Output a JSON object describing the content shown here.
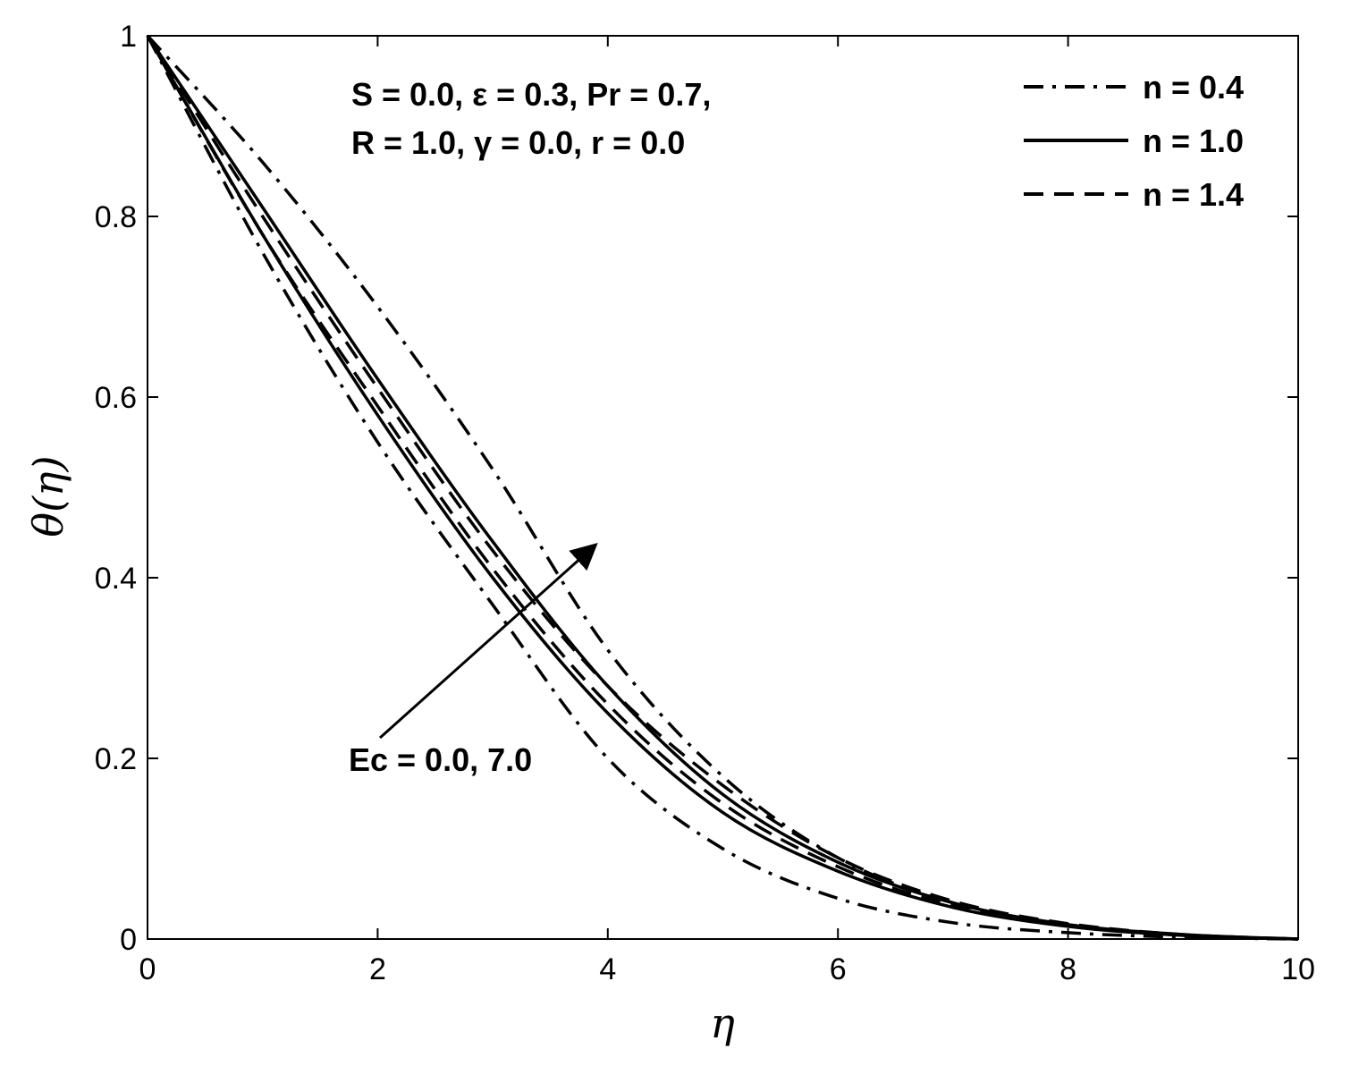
{
  "chart_data": {
    "type": "line",
    "xlabel": "η",
    "ylabel": "θ(η)",
    "xlim": [
      0,
      10
    ],
    "ylim": [
      0,
      1
    ],
    "xticks": [
      "0",
      "2",
      "4",
      "6",
      "8",
      "10"
    ],
    "yticks": [
      "0",
      "0.2",
      "0.4",
      "0.6",
      "0.8",
      "1"
    ],
    "grid": false,
    "legend_position": "top-right",
    "legend": [
      {
        "label": "n = 0.4",
        "style": "dashdot"
      },
      {
        "label": "n = 1.0",
        "style": "solid"
      },
      {
        "label": "n = 1.4",
        "style": "dashed"
      }
    ],
    "annotations": {
      "params_line1": "S = 0.0, ε = 0.3, Pr = 0.7,",
      "params_line2": "R = 1.0, γ = 0.0, r = 0.0",
      "arrow_label": "Ec = 0.0, 7.0"
    },
    "x": [
      0,
      1,
      2,
      3,
      4,
      5,
      6,
      7,
      8,
      9,
      10
    ],
    "series": [
      {
        "style": "dashdot",
        "values": [
          1.0,
          0.76,
          0.55,
          0.37,
          0.2,
          0.1,
          0.045,
          0.018,
          0.007,
          0.002,
          0.0
        ]
      },
      {
        "style": "dashdot",
        "values": [
          1.0,
          0.86,
          0.7,
          0.52,
          0.32,
          0.18,
          0.09,
          0.04,
          0.015,
          0.004,
          0.0
        ]
      },
      {
        "style": "solid",
        "values": [
          1.0,
          0.78,
          0.58,
          0.4,
          0.25,
          0.14,
          0.075,
          0.035,
          0.014,
          0.004,
          0.0
        ]
      },
      {
        "style": "solid",
        "values": [
          1.0,
          0.81,
          0.62,
          0.44,
          0.28,
          0.16,
          0.085,
          0.04,
          0.016,
          0.005,
          0.0
        ]
      },
      {
        "style": "dashed",
        "values": [
          1.0,
          0.78,
          0.59,
          0.41,
          0.26,
          0.15,
          0.08,
          0.037,
          0.015,
          0.004,
          0.0
        ]
      },
      {
        "style": "dashed",
        "values": [
          1.0,
          0.8,
          0.61,
          0.43,
          0.28,
          0.17,
          0.09,
          0.042,
          0.017,
          0.005,
          0.0
        ]
      }
    ]
  }
}
